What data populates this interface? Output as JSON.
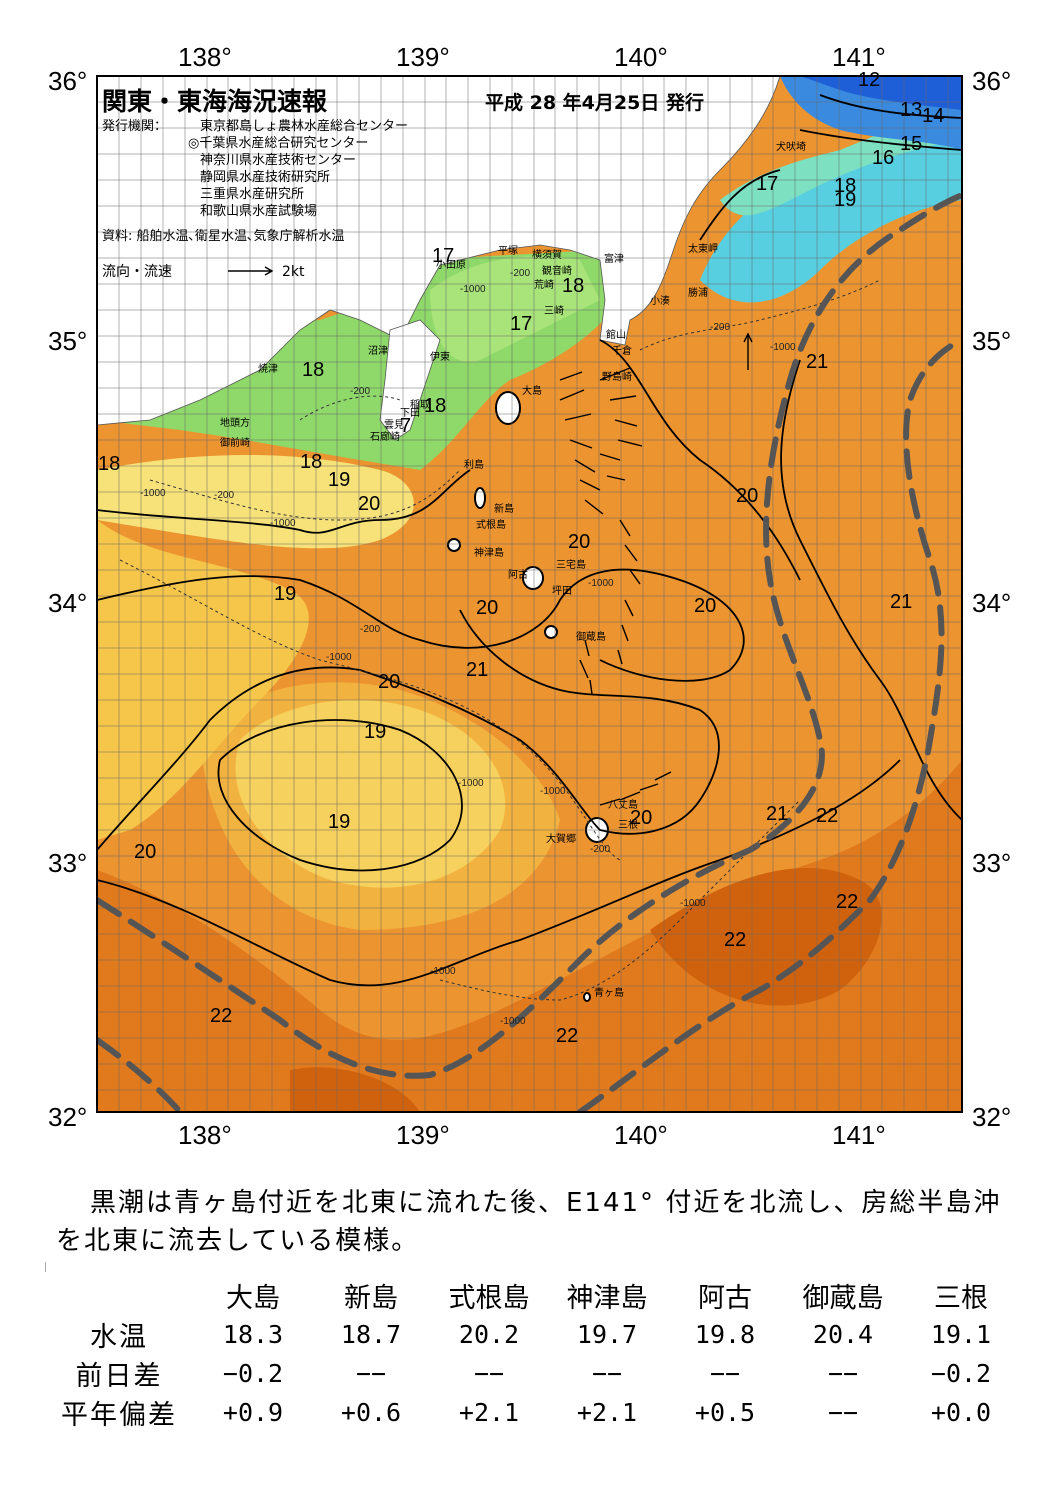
{
  "header": {
    "title": "関東・東海海況速報",
    "issued": "平成 28 年4月25日 発行",
    "publisher_label": "発行機関：",
    "publishers": [
      "東京都島しょ農林水産総合センター",
      "◎千葉県水産総合研究センター",
      "神奈川県水産技術センター",
      "静岡県水産技術研究所",
      "三重県水産研究所",
      "和歌山県水産試験場"
    ],
    "sources": "資料: 船舶水温､衛星水温､気象庁解析水温",
    "flow_legend_label": "流向・流速",
    "flow_legend_scale": "2kt"
  },
  "axes": {
    "lon_top": [
      "138°",
      "139°",
      "140°",
      "141°"
    ],
    "lon_bottom": [
      "138°",
      "139°",
      "140°",
      "141°"
    ],
    "lat_left": [
      "36°",
      "35°",
      "34°",
      "33°",
      "32°"
    ],
    "lat_right": [
      "36°",
      "35°",
      "34°",
      "33°",
      "32°"
    ]
  },
  "place_names": [
    "犬吠埼",
    "太東岬",
    "勝浦",
    "小湊",
    "富津",
    "館山",
    "千倉",
    "野島崎",
    "横須賀",
    "観音崎",
    "平塚",
    "小田原",
    "荒崎",
    "三崎",
    "沼津",
    "伊東",
    "焼津",
    "稲取",
    "下田",
    "石廊崎",
    "雲見",
    "地頭方",
    "御前崎",
    "大島",
    "利島",
    "新島",
    "式根島",
    "神津島",
    "阿古",
    "三宅島",
    "坪田",
    "御蔵島",
    "大賀郷",
    "三根",
    "八丈島",
    "青ヶ島"
  ],
  "isotherm_labels": [
    "12",
    "13",
    "14",
    "15",
    "16",
    "17",
    "18",
    "19",
    "17",
    "18",
    "17",
    "18",
    "18",
    "7",
    "18",
    "18",
    "19",
    "20",
    "20",
    "20",
    "19",
    "20",
    "20",
    "21",
    "20",
    "19",
    "19",
    "20",
    "20",
    "21",
    "22",
    "21",
    "21",
    "22",
    "22",
    "22",
    "22"
  ],
  "depth_labels": [
    "-200",
    "-1000"
  ],
  "colors": {
    "t12": "#1e5fd8",
    "t13": "#3a8be0",
    "t14": "#4fb0e8",
    "t15": "#58cfe0",
    "t16": "#7de0c0",
    "t17": "#a8e47a",
    "t18": "#8fd86a",
    "t19": "#f7e27a",
    "t195": "#f6c64a",
    "t20": "#f0a43a",
    "t21": "#ec9430",
    "t22": "#e07a1c",
    "t225": "#d0620e",
    "kuroshio": "#555555",
    "land": "#ffffff"
  },
  "summary": "黒潮は青ヶ島付近を北東に流れた後、E141° 付近を北流し、房総半島沖を北東に流去している模様。",
  "table": {
    "columns": [
      "大島",
      "新島",
      "式根島",
      "神津島",
      "阿古",
      "御蔵島",
      "三根"
    ],
    "rows": [
      {
        "label": "水温",
        "values": [
          "18.3",
          "18.7",
          "20.2",
          "19.7",
          "19.8",
          "20.4",
          "19.1"
        ]
      },
      {
        "label": "前日差",
        "values": [
          "−0.2",
          "−−",
          "−−",
          "−−",
          "−−",
          "−−",
          "−0.2"
        ]
      },
      {
        "label": "平年偏差",
        "values": [
          "+0.9",
          "+0.6",
          "+2.1",
          "+2.1",
          "+0.5",
          "−−",
          "+0.0"
        ]
      }
    ]
  }
}
